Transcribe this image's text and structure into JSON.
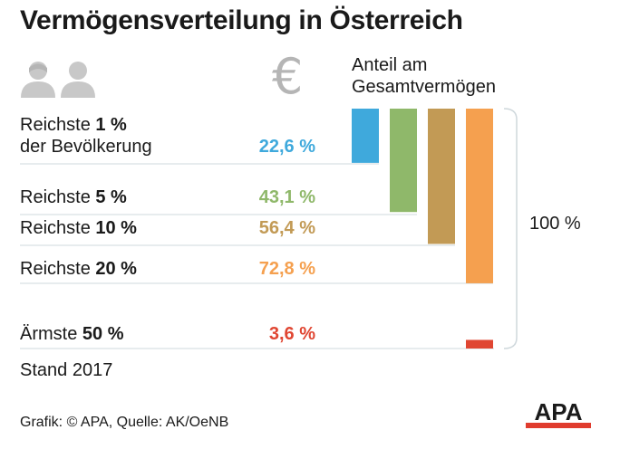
{
  "header": {
    "title": "Vermögensverteilung in Österreich",
    "column_label_line1": "Anteil am",
    "column_label_line2": "Gesamtvermögen",
    "people_icon": "people-icon",
    "euro_icon": "euro-icon",
    "euro_symbol": "€"
  },
  "chart_data": {
    "type": "bar",
    "categories": [
      "Reichste 1 % der Bevölkerung",
      "Reichste 5 %",
      "Reichste 10 %",
      "Reichste 20 %",
      "Ärmste 50 %"
    ],
    "values": [
      22.6,
      43.1,
      56.4,
      72.8,
      3.6
    ],
    "value_labels": [
      "22,6 %",
      "43,1 %",
      "56,4 %",
      "72,8 %",
      "3,6 %"
    ],
    "colors": [
      "#3fa9dc",
      "#8fb86a",
      "#c29a55",
      "#f5a04f",
      "#e04632"
    ],
    "ylim": [
      0,
      100
    ],
    "total_label": "100 %",
    "rows": [
      {
        "line1_prefix": "Reichste ",
        "line1_bold": "1 %",
        "line2": "der Bevölkerung"
      },
      {
        "line1_prefix": "Reichste ",
        "line1_bold": "5 %"
      },
      {
        "line1_prefix": "Reichste ",
        "line1_bold": "10 %"
      },
      {
        "line1_prefix": "Reichste ",
        "line1_bold": "20 %"
      },
      {
        "line1_prefix": "Ärmste ",
        "line1_bold": "50 %"
      }
    ]
  },
  "footer": {
    "stand": "Stand 2017",
    "source": "Grafik: © APA, Quelle: AK/OeNB",
    "logo_text": "APA"
  }
}
